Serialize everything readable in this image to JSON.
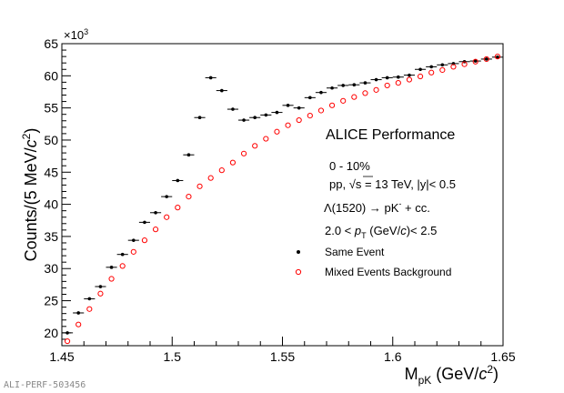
{
  "figure_id": "ALI-PERF-503456",
  "chart_data": {
    "type": "scatter",
    "title": "ALICE Performance",
    "xlabel_main": "M",
    "xlabel_sub": "pK",
    "xlabel_rest": " (GeV/",
    "xlabel_c": "c",
    "xlabel_sup": "2",
    "xlabel_close": ")",
    "ylabel_pre": "Counts/(5 MeV/",
    "ylabel_c": "c",
    "ylabel_sup": "2",
    "ylabel_close": ")",
    "y_multiplier_label": "×10",
    "y_multiplier_exp": "3",
    "xlim": [
      1.45,
      1.65
    ],
    "ylim": [
      18,
      65
    ],
    "x_ticks": [
      1.45,
      1.5,
      1.55,
      1.6,
      1.65
    ],
    "x_tick_labels": [
      "1.45",
      "1.5",
      "1.55",
      "1.6",
      "1.65"
    ],
    "y_ticks": [
      20,
      25,
      30,
      35,
      40,
      45,
      50,
      55,
      60,
      65
    ],
    "y_tick_labels": [
      "20",
      "25",
      "30",
      "35",
      "40",
      "45",
      "50",
      "55",
      "60",
      "65"
    ],
    "annotations": {
      "centrality": "0 - 10%",
      "system_pre": "pp, ",
      "system_sqrt": "√s",
      "system_post": " = 13 TeV, |y|< 0.5",
      "decay_pre": "Λ(1520) → pK",
      "decay_sup": "-",
      "decay_post": " + cc.",
      "pt_pre": "2.0 < ",
      "pt_p": "p",
      "pt_sub": "T",
      "pt_post": " (GeV/",
      "pt_c": "c",
      "pt_close": ")< 2.5"
    },
    "legend_position": "bottom-right",
    "bin_width": 0.005,
    "series": [
      {
        "name": "Same Event",
        "color": "#000000",
        "marker": "filled-circle",
        "x": [
          1.4525,
          1.4575,
          1.4625,
          1.4675,
          1.4725,
          1.4775,
          1.4825,
          1.4875,
          1.4925,
          1.4975,
          1.5025,
          1.5075,
          1.5125,
          1.5175,
          1.5225,
          1.5275,
          1.5325,
          1.5375,
          1.5425,
          1.5475,
          1.5525,
          1.5575,
          1.5625,
          1.5675,
          1.5725,
          1.5775,
          1.5825,
          1.5875,
          1.5925,
          1.5975,
          1.6025,
          1.6075,
          1.6125,
          1.6175,
          1.6225,
          1.6275,
          1.6325,
          1.6375,
          1.6425,
          1.6475
        ],
        "y": [
          20.0,
          23.1,
          25.3,
          27.2,
          30.2,
          32.2,
          34.4,
          37.2,
          38.7,
          41.2,
          43.7,
          47.7,
          53.5,
          59.7,
          57.7,
          54.8,
          53.1,
          53.5,
          53.9,
          54.3,
          55.4,
          55.0,
          56.6,
          57.4,
          58.1,
          58.5,
          58.6,
          58.9,
          59.4,
          59.7,
          59.8,
          60.1,
          61.0,
          61.4,
          61.7,
          61.9,
          62.2,
          62.3,
          62.6,
          62.9
        ]
      },
      {
        "name": "Mixed Events Background",
        "color": "#ff0000",
        "marker": "open-circle",
        "x": [
          1.4525,
          1.4575,
          1.4625,
          1.4675,
          1.4725,
          1.4775,
          1.4825,
          1.4875,
          1.4925,
          1.4975,
          1.5025,
          1.5075,
          1.5125,
          1.5175,
          1.5225,
          1.5275,
          1.5325,
          1.5375,
          1.5425,
          1.5475,
          1.5525,
          1.5575,
          1.5625,
          1.5675,
          1.5725,
          1.5775,
          1.5825,
          1.5875,
          1.5925,
          1.5975,
          1.6025,
          1.6075,
          1.6125,
          1.6175,
          1.6225,
          1.6275,
          1.6325,
          1.6375,
          1.6425,
          1.6475
        ],
        "y": [
          18.7,
          21.3,
          23.7,
          26.1,
          28.4,
          30.4,
          32.6,
          34.4,
          36.1,
          38.0,
          39.5,
          41.2,
          42.8,
          44.1,
          45.3,
          46.5,
          47.9,
          49.1,
          50.2,
          51.3,
          52.3,
          53.1,
          53.8,
          54.6,
          55.4,
          56.1,
          56.7,
          57.3,
          57.8,
          58.5,
          58.9,
          59.4,
          59.9,
          60.5,
          60.9,
          61.4,
          61.8,
          62.2,
          62.6,
          63.0
        ]
      }
    ]
  }
}
